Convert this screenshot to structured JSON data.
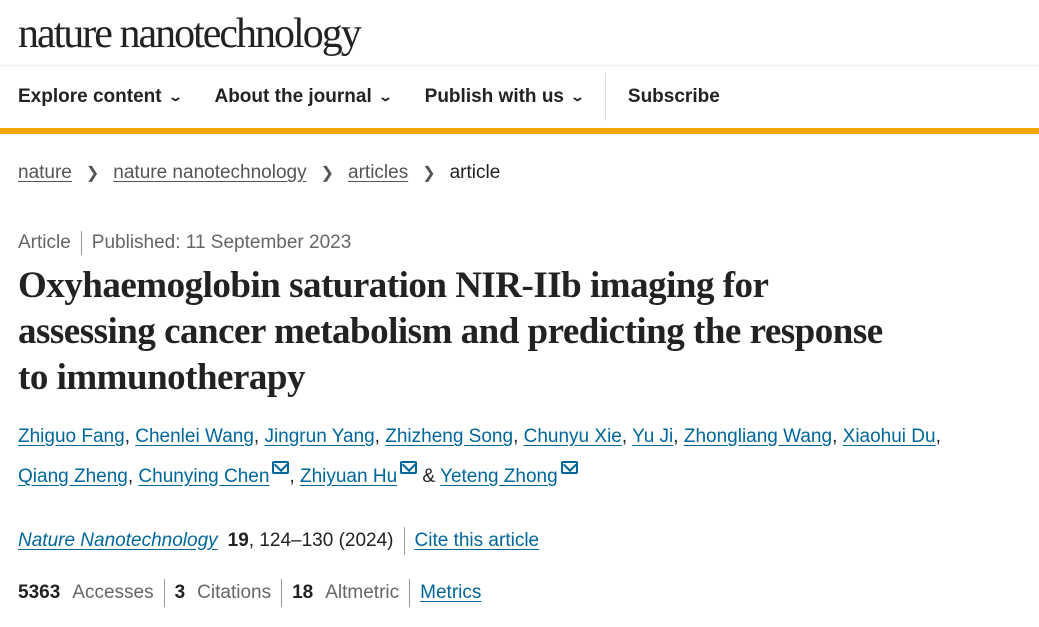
{
  "brand": "nature nanotechnology",
  "nav": {
    "items": [
      "Explore content",
      "About the journal",
      "Publish with us"
    ],
    "subscribe": "Subscribe"
  },
  "breadcrumb": [
    "nature",
    "nature nanotechnology",
    "articles",
    "article"
  ],
  "article": {
    "type": "Article",
    "published": "Published: 11 September 2023",
    "title": "Oxyhaemoglobin saturation NIR-IIb imaging for assessing cancer metabolism and predicting the response to immunotherapy",
    "authors": [
      "Zhiguo Fang",
      "Chenlei Wang",
      "Jingrun Yang",
      "Zhizheng Song",
      "Chunyu Xie",
      "Yu Ji",
      "Zhongliang Wang",
      "Xiaohui Du",
      "Qiang Zheng",
      "Chunying Chen",
      "Zhiyuan Hu",
      "Yeteng Zhong"
    ],
    "journal": "Nature Nanotechnology",
    "volume": "19",
    "pages": ", 124–130 (2024)",
    "cite_label": "Cite this article"
  },
  "metrics": {
    "accesses": "5363",
    "accesses_label": "Accesses",
    "citations": "3",
    "citations_label": "Citations",
    "altmetric": "18",
    "altmetric_label": "Altmetric",
    "link": "Metrics"
  },
  "colors": {
    "accent": "#f2a60c",
    "link": "#006699"
  }
}
